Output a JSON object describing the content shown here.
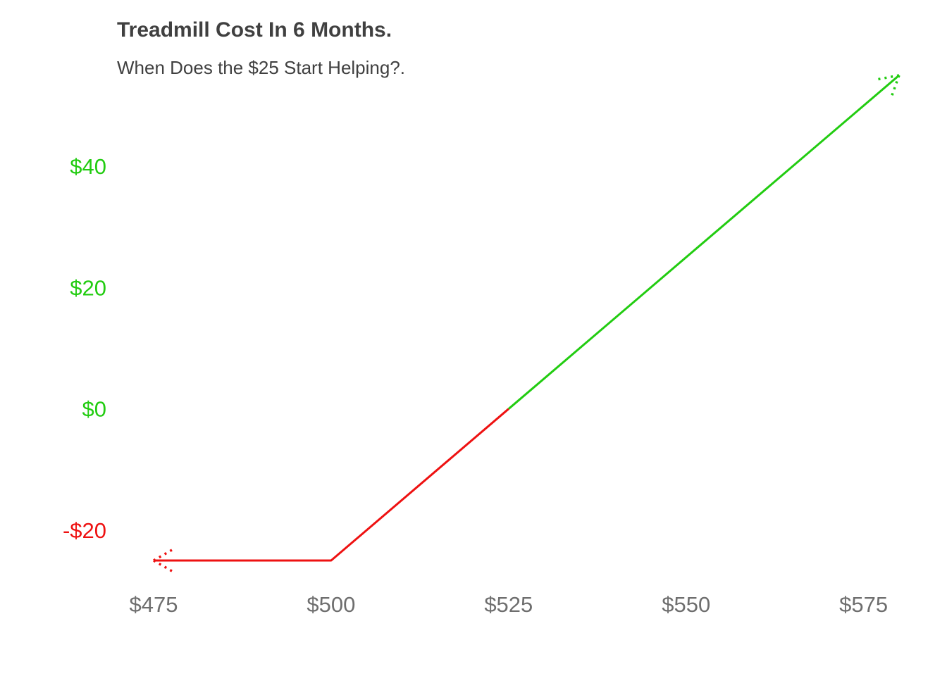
{
  "chart_data": {
    "type": "line",
    "title": "Treadmill Cost In 6 Months.",
    "subtitle": "When Does the $25 Start Helping?.",
    "xlabel": "",
    "ylabel": "",
    "x_ticks": [
      475,
      500,
      525,
      550,
      575
    ],
    "x_tick_labels": [
      "$475",
      "$500",
      "$525",
      "$550",
      "$575"
    ],
    "y_ticks": [
      -20,
      0,
      20,
      40
    ],
    "y_tick_labels": [
      "-$20",
      "$0",
      "$20",
      "$40"
    ],
    "xlim": [
      475,
      580
    ],
    "ylim": [
      -25,
      55
    ],
    "grid": false,
    "series": [
      {
        "color": "#EE1111",
        "x": [
          475,
          500,
          525
        ],
        "y": [
          -25,
          -25,
          0
        ]
      },
      {
        "color": "#22CC11",
        "x": [
          525,
          580
        ],
        "y": [
          0,
          55
        ]
      }
    ],
    "arrows": {
      "left": {
        "x": 475,
        "y": -25,
        "color": "#EE1111",
        "style": "dotted"
      },
      "right": {
        "x": 580,
        "y": 55,
        "color": "#22CC11",
        "style": "dotted"
      }
    },
    "colors": {
      "negative": "#EE1111",
      "positive": "#22CC11",
      "x_tick": "#6E6E6E",
      "title": "#404040"
    }
  }
}
